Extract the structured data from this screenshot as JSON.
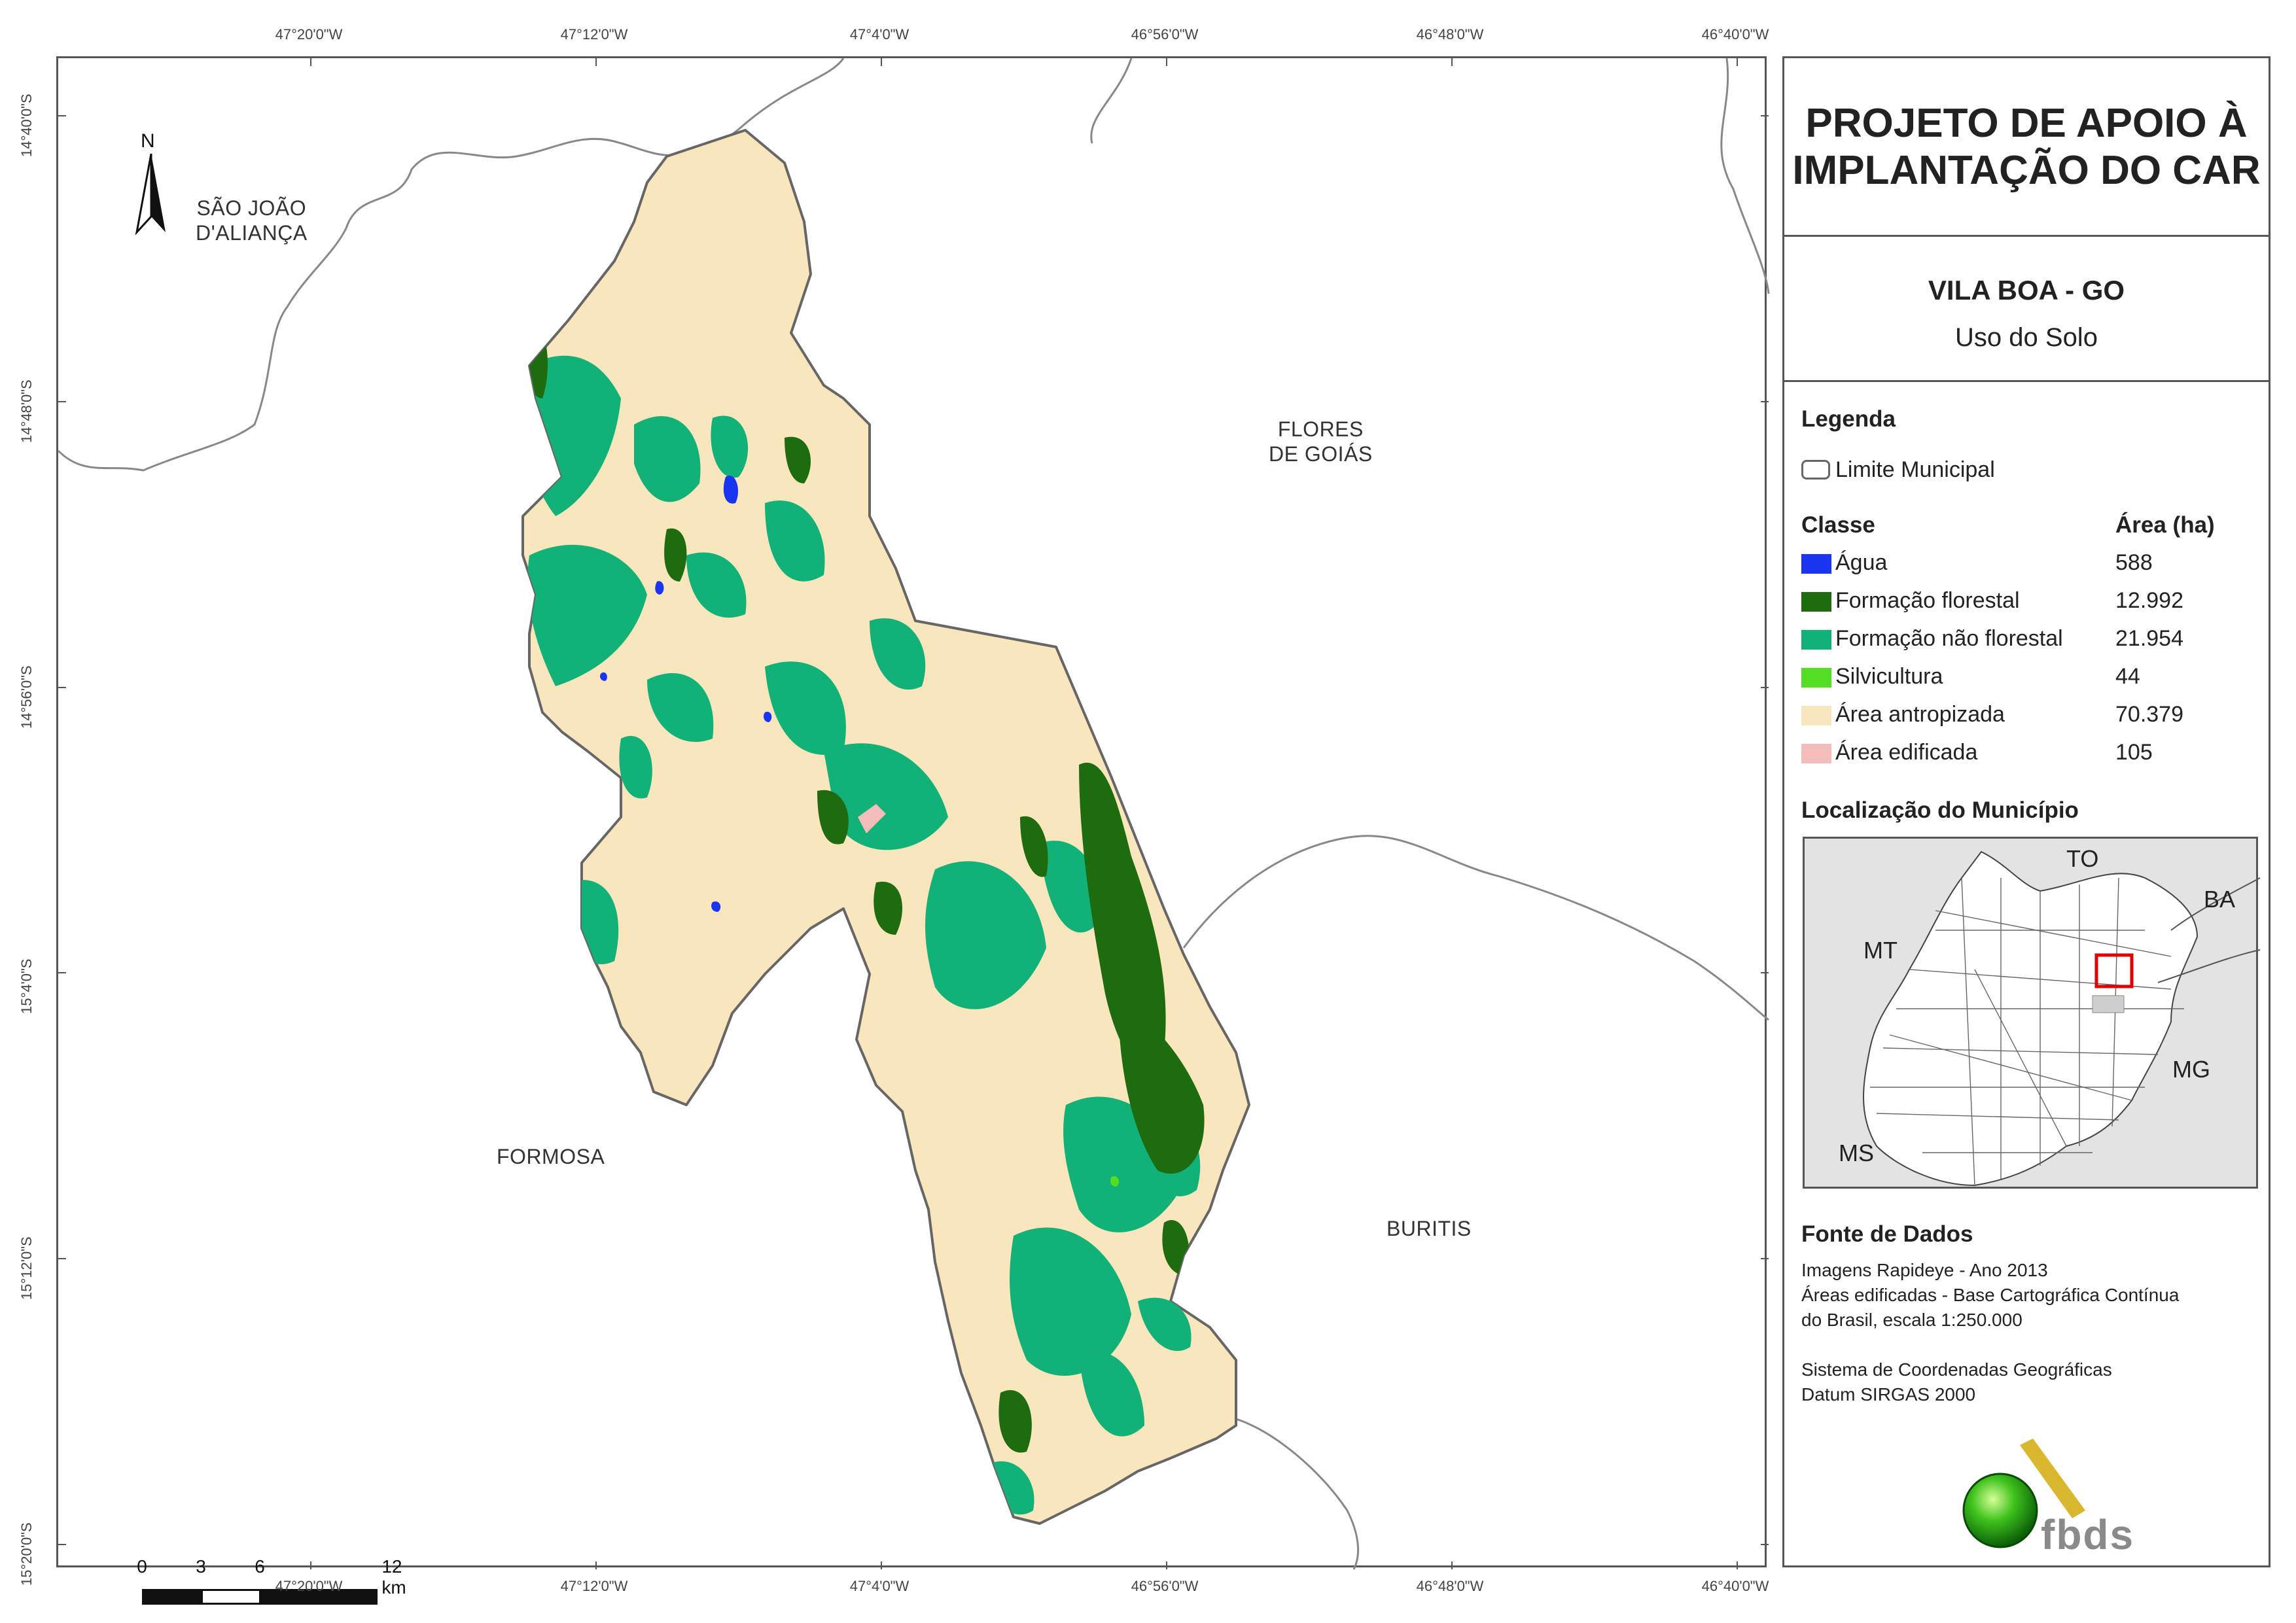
{
  "map": {
    "coords_top": [
      "47°20'0\"W",
      "47°12'0\"W",
      "47°4'0\"W",
      "46°56'0\"W",
      "46°48'0\"W",
      "46°40'0\"W"
    ],
    "coords_bottom": [
      "47°20'0\"W",
      "47°12'0\"W",
      "47°4'0\"W",
      "46°56'0\"W",
      "46°48'0\"W",
      "46°40'0\"W"
    ],
    "coords_left": [
      "14°40'0\"S",
      "14°48'0\"S",
      "14°56'0\"S",
      "15°4'0\"S",
      "15°12'0\"S",
      "15°20'0\"S"
    ],
    "north_label": "N",
    "neighbors": {
      "sao_joao_line1": "SÃO JOÃO",
      "sao_joao_line2": "D'ALIANÇA",
      "flores_line1": "FLORES",
      "flores_line2": "DE GOIÁS",
      "formosa": "FORMOSA",
      "buritis": "BURITIS"
    },
    "scalebar": {
      "ticks": [
        "0",
        "3",
        "6",
        "12 km"
      ]
    }
  },
  "panel": {
    "title_line1": "PROJETO DE APOIO À",
    "title_line2": "IMPLANTAÇÃO DO CAR",
    "place": "VILA BOA - GO",
    "theme": "Uso do Solo",
    "legend_title": "Legenda",
    "limit_label": "Limite Municipal",
    "class_header": "Classe",
    "area_header": "Área (ha)",
    "classes": [
      {
        "label": "Água",
        "area": "588",
        "color": "#1a35f0"
      },
      {
        "label": "Formação florestal",
        "area": "12.992",
        "color": "#1e6b10"
      },
      {
        "label": "Formação não florestal",
        "area": "21.954",
        "color": "#12b178"
      },
      {
        "label": "Silvicultura",
        "area": "44",
        "color": "#55dd22"
      },
      {
        "label": "Área antropizada",
        "area": "70.379",
        "color": "#fae6bd"
      },
      {
        "label": "Área edificada",
        "area": "105",
        "color": "#f5bcbc"
      }
    ],
    "location_title": "Localização do Município",
    "location_labels": {
      "to": "TO",
      "ba": "BA",
      "mt": "MT",
      "mg": "MG",
      "ms": "MS"
    },
    "sources_title": "Fonte de Dados",
    "sources_lines": [
      "Imagens Rapideye - Ano 2013",
      "Áreas edificadas - Base Cartográfica Contínua",
      "do Brasil, escala 1:250.000"
    ],
    "crs_lines": [
      "Sistema de Coordenadas Geográficas",
      "Datum SIRGAS 2000"
    ],
    "logo_text": "fbds"
  }
}
